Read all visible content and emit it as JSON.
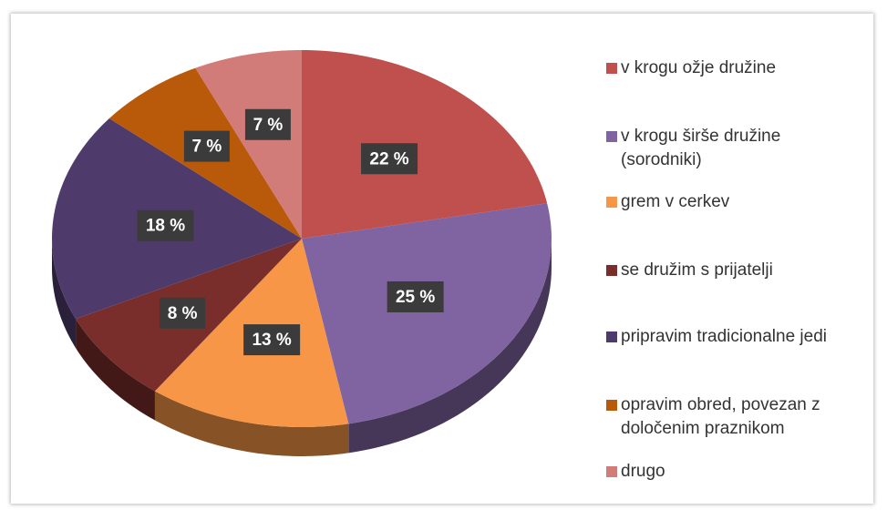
{
  "chart_data": {
    "type": "pie",
    "categories": [
      "v krogu ožje družine",
      "v krogu širše družine (sorodniki)",
      "grem v cerkev",
      "se družim s prijatelji",
      "pripravim tradicionalne jedi",
      "opravim obred, povezan z določenim praznikom",
      "drugo"
    ],
    "values": [
      22,
      25,
      13,
      8,
      18,
      7,
      7
    ],
    "value_labels": [
      "22 %",
      "25 %",
      "13 %",
      "8 %",
      "18 %",
      "7 %",
      "7 %"
    ],
    "colors": [
      "#c0504d",
      "#8064a2",
      "#f79646",
      "#7a2e2c",
      "#4f3b6b",
      "#b85a0a",
      "#d27c7a"
    ],
    "legend": "right"
  }
}
